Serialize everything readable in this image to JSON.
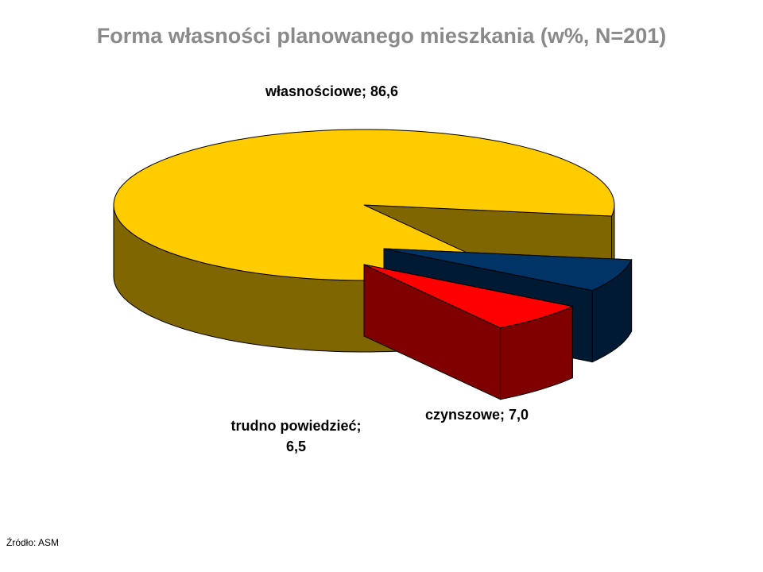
{
  "chart_data": {
    "type": "pie3d",
    "title": "Forma własności planowanego mieszkania (w%, N=201)",
    "values": [
      86.6,
      7.0,
      6.5
    ],
    "value_labels": [
      "własnościowe; 86,6",
      "czynszowe; 7,0",
      "trudno powiedzieć; 6,5"
    ],
    "colors": [
      "#ffcc00",
      "#003366",
      "#ff0000"
    ],
    "side_colors": [
      "#806600",
      "#001a33",
      "#800000"
    ]
  },
  "source": "Źródło: ASM"
}
